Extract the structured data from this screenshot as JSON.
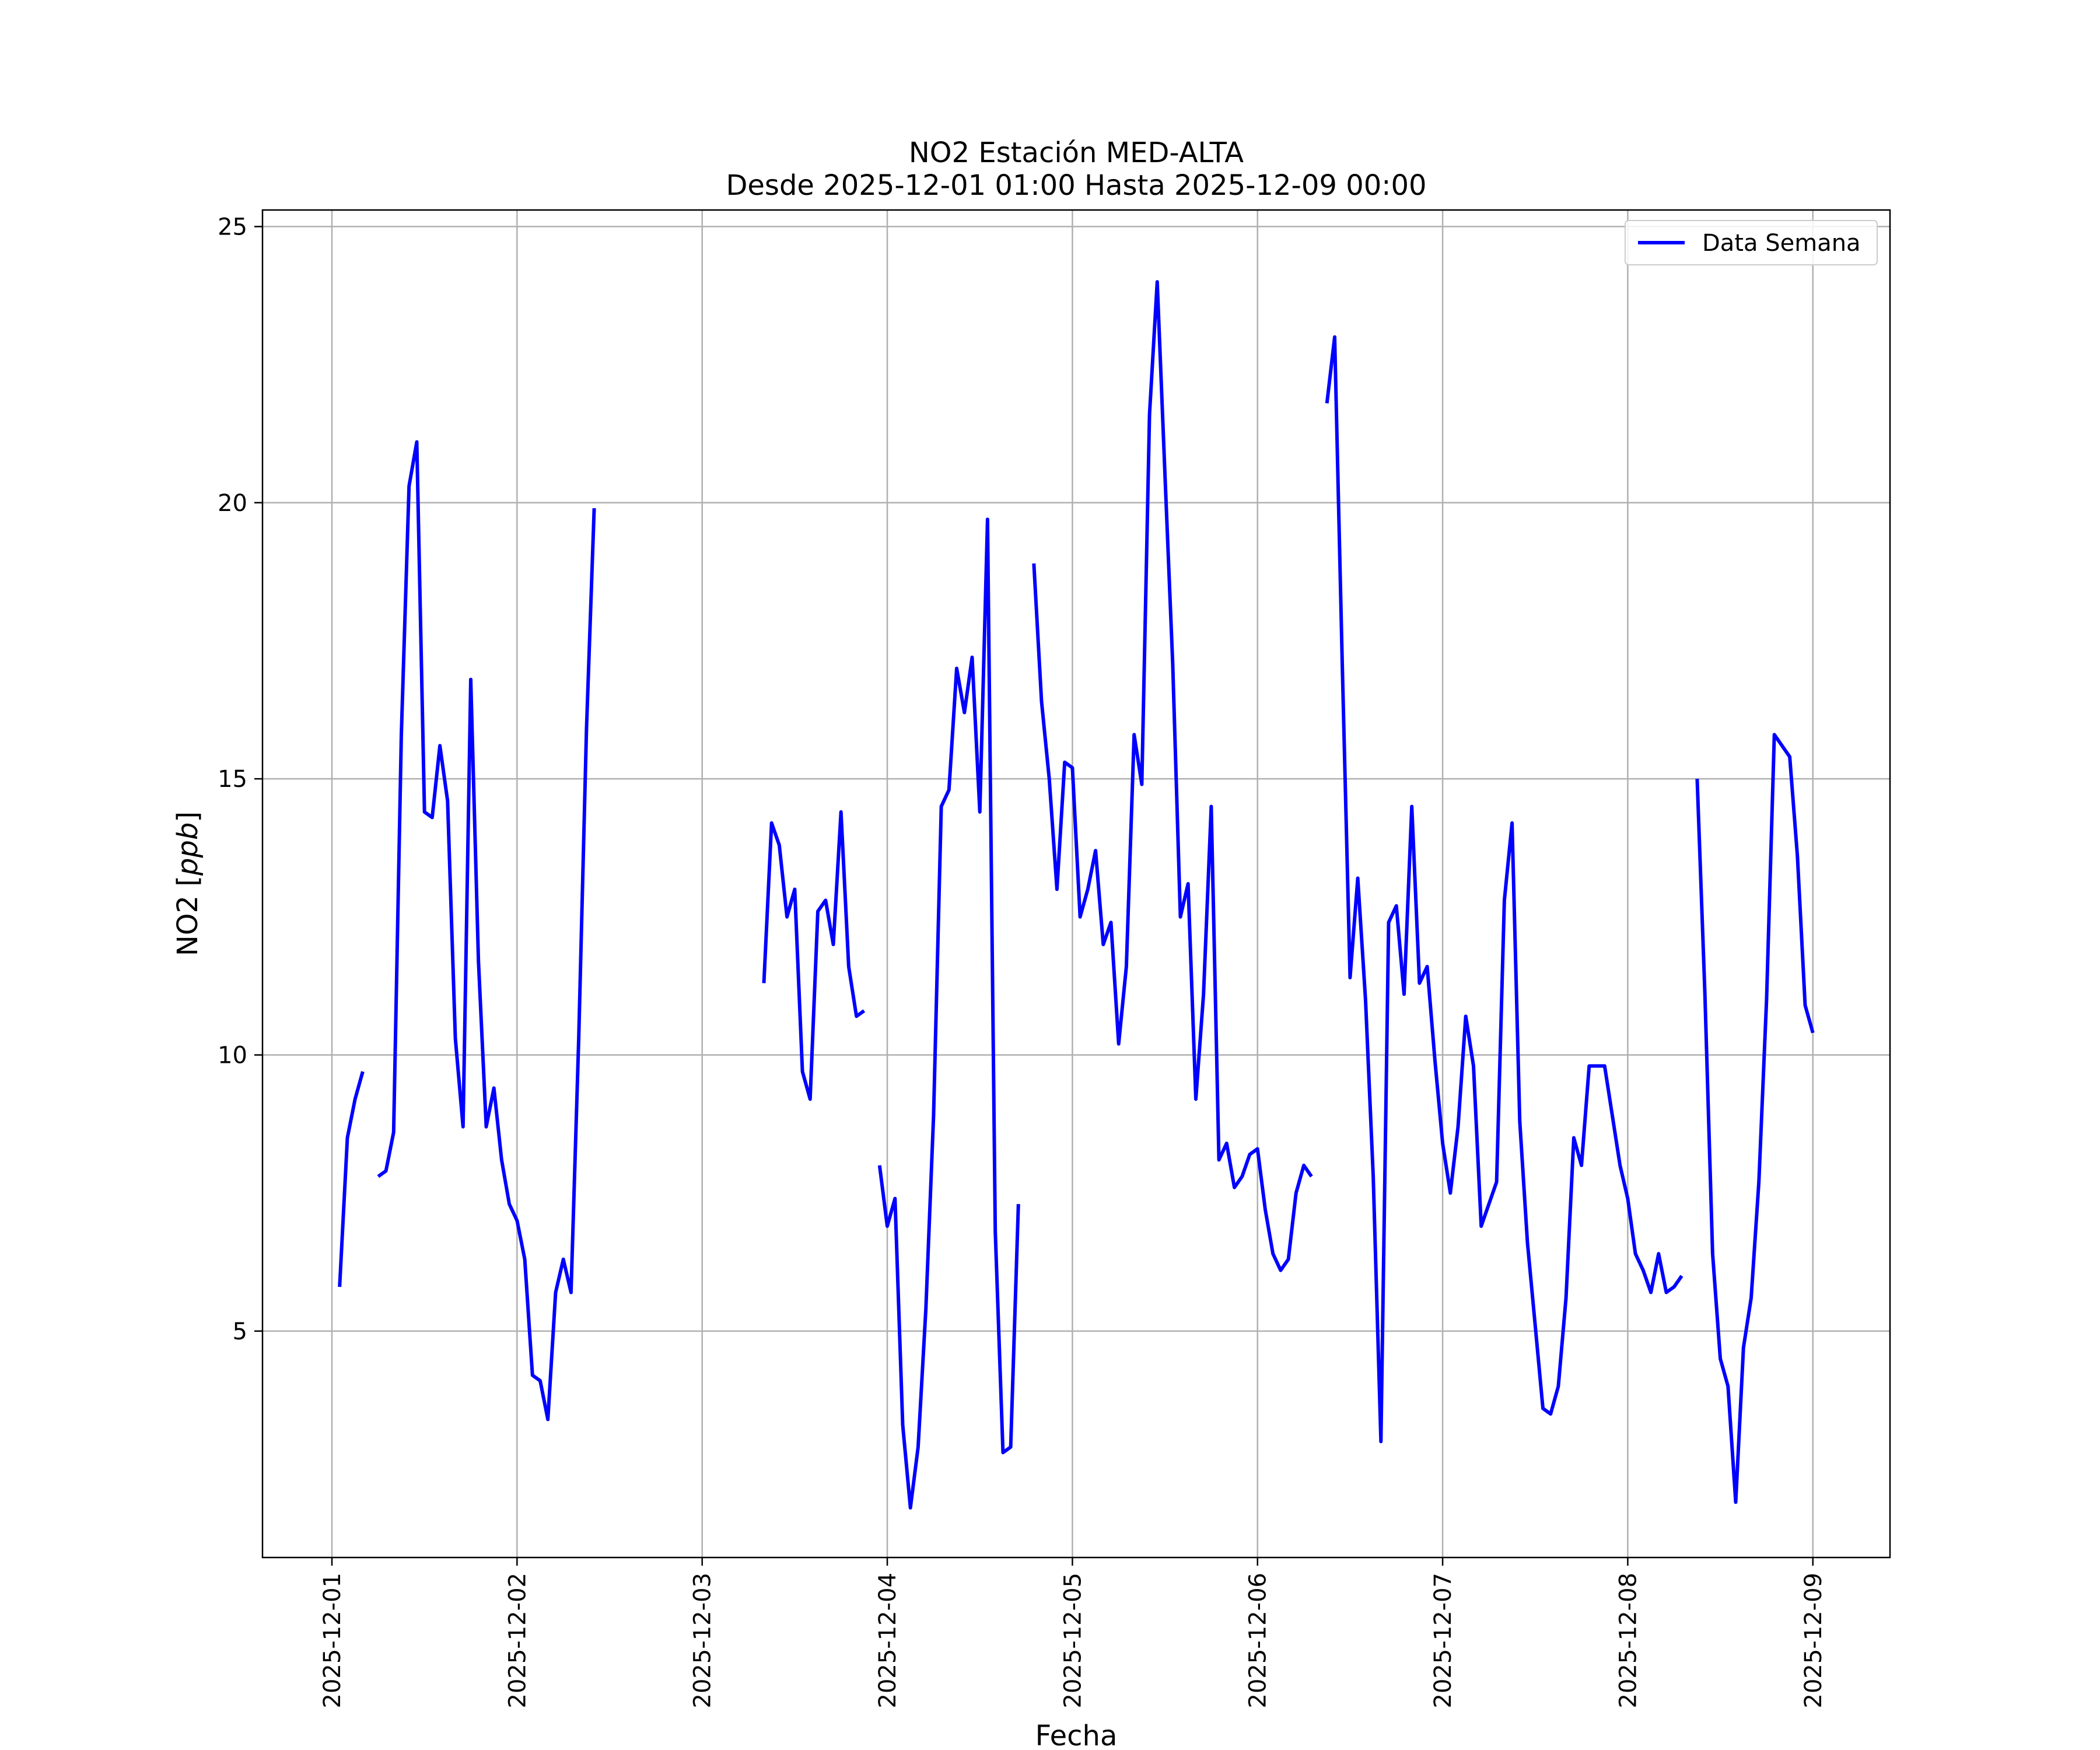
{
  "chart_data": {
    "type": "line",
    "title": "NO2 Estación MED-ALTA",
    "subtitle": "Desde 2025-12-01 01:00 Hasta 2025-12-09 00:00",
    "xlabel": "Fecha",
    "ylabel_prefix": "NO2 [",
    "ylabel_unit": "ppb",
    "ylabel_suffix": "]",
    "xlim": [
      "2025-11-30 15:00",
      "2025-12-09 10:00"
    ],
    "ylim": [
      0.9,
      25.3
    ],
    "x_ticks": [
      "2025-12-01",
      "2025-12-02",
      "2025-12-03",
      "2025-12-04",
      "2025-12-05",
      "2025-12-06",
      "2025-12-07",
      "2025-12-08",
      "2025-12-09"
    ],
    "y_ticks": [
      5,
      10,
      15,
      20,
      25
    ],
    "grid": true,
    "legend": "top-right",
    "series": [
      {
        "name": "Data Semana",
        "color": "#0000ff",
        "segments": [
          [
            [
              "2025-12-01 01:00",
              5.8
            ],
            [
              "2025-12-01 02:00",
              8.5
            ],
            [
              "2025-12-01 03:00",
              9.2
            ],
            [
              "2025-12-01 04:00",
              9.7
            ]
          ],
          [
            [
              "2025-12-01 06:00",
              7.8
            ],
            [
              "2025-12-01 07:00",
              7.9
            ],
            [
              "2025-12-01 08:00",
              8.6
            ],
            [
              "2025-12-01 09:00",
              15.8
            ],
            [
              "2025-12-01 10:00",
              20.3
            ],
            [
              "2025-12-01 11:00",
              21.1
            ],
            [
              "2025-12-01 12:00",
              14.4
            ],
            [
              "2025-12-01 13:00",
              14.3
            ],
            [
              "2025-12-01 14:00",
              15.6
            ],
            [
              "2025-12-01 15:00",
              14.6
            ],
            [
              "2025-12-01 16:00",
              10.3
            ],
            [
              "2025-12-01 17:00",
              8.7
            ],
            [
              "2025-12-01 18:00",
              16.8
            ],
            [
              "2025-12-01 19:00",
              11.7
            ],
            [
              "2025-12-01 20:00",
              8.7
            ],
            [
              "2025-12-01 21:00",
              9.4
            ],
            [
              "2025-12-01 22:00",
              8.1
            ],
            [
              "2025-12-01 23:00",
              7.3
            ],
            [
              "2025-12-02 00:00",
              7.0
            ],
            [
              "2025-12-02 01:00",
              6.3
            ],
            [
              "2025-12-02 02:00",
              4.2
            ],
            [
              "2025-12-02 03:00",
              4.1
            ],
            [
              "2025-12-02 04:00",
              3.4
            ],
            [
              "2025-12-02 05:00",
              5.7
            ],
            [
              "2025-12-02 06:00",
              6.3
            ],
            [
              "2025-12-02 07:00",
              5.7
            ],
            [
              "2025-12-02 08:00",
              10.3
            ],
            [
              "2025-12-02 09:00",
              15.9
            ],
            [
              "2025-12-02 10:00",
              19.9
            ]
          ],
          [
            [
              "2025-12-03 08:00",
              11.3
            ],
            [
              "2025-12-03 09:00",
              14.2
            ],
            [
              "2025-12-03 10:00",
              13.8
            ],
            [
              "2025-12-03 11:00",
              12.5
            ],
            [
              "2025-12-03 12:00",
              13.0
            ],
            [
              "2025-12-03 13:00",
              9.7
            ],
            [
              "2025-12-03 14:00",
              9.2
            ],
            [
              "2025-12-03 15:00",
              12.6
            ],
            [
              "2025-12-03 16:00",
              12.8
            ],
            [
              "2025-12-03 17:00",
              12.0
            ],
            [
              "2025-12-03 18:00",
              14.4
            ],
            [
              "2025-12-03 19:00",
              11.6
            ],
            [
              "2025-12-03 20:00",
              10.7
            ],
            [
              "2025-12-03 21:00",
              10.8
            ]
          ],
          [
            [
              "2025-12-03 23:00",
              8.0
            ],
            [
              "2025-12-04 00:00",
              6.9
            ],
            [
              "2025-12-04 01:00",
              7.4
            ],
            [
              "2025-12-04 02:00",
              3.3
            ],
            [
              "2025-12-04 03:00",
              1.8
            ],
            [
              "2025-12-04 04:00",
              2.9
            ],
            [
              "2025-12-04 05:00",
              5.4
            ],
            [
              "2025-12-04 06:00",
              8.9
            ],
            [
              "2025-12-04 07:00",
              14.5
            ],
            [
              "2025-12-04 08:00",
              14.8
            ],
            [
              "2025-12-04 09:00",
              17.0
            ],
            [
              "2025-12-04 10:00",
              16.2
            ],
            [
              "2025-12-04 11:00",
              17.2
            ],
            [
              "2025-12-04 12:00",
              14.4
            ],
            [
              "2025-12-04 13:00",
              19.7
            ],
            [
              "2025-12-04 14:00",
              6.8
            ],
            [
              "2025-12-04 15:00",
              2.8
            ],
            [
              "2025-12-04 16:00",
              2.9
            ],
            [
              "2025-12-04 17:00",
              7.3
            ]
          ],
          [
            [
              "2025-12-04 19:00",
              18.9
            ],
            [
              "2025-12-04 20:00",
              16.4
            ],
            [
              "2025-12-04 21:00",
              15.0
            ],
            [
              "2025-12-04 22:00",
              13.0
            ],
            [
              "2025-12-04 23:00",
              15.3
            ],
            [
              "2025-12-05 00:00",
              15.2
            ],
            [
              "2025-12-05 01:00",
              12.5
            ],
            [
              "2025-12-05 02:00",
              13.0
            ],
            [
              "2025-12-05 03:00",
              13.7
            ],
            [
              "2025-12-05 04:00",
              12.0
            ],
            [
              "2025-12-05 05:00",
              12.4
            ],
            [
              "2025-12-05 06:00",
              10.2
            ],
            [
              "2025-12-05 07:00",
              11.6
            ],
            [
              "2025-12-05 08:00",
              15.8
            ],
            [
              "2025-12-05 09:00",
              14.9
            ],
            [
              "2025-12-05 10:00",
              21.6
            ],
            [
              "2025-12-05 11:00",
              24.0
            ],
            [
              "2025-12-05 12:00",
              20.5
            ],
            [
              "2025-12-05 13:00",
              17.1
            ],
            [
              "2025-12-05 14:00",
              12.5
            ],
            [
              "2025-12-05 15:00",
              13.1
            ],
            [
              "2025-12-05 16:00",
              9.2
            ],
            [
              "2025-12-05 17:00",
              11.1
            ],
            [
              "2025-12-05 18:00",
              14.5
            ],
            [
              "2025-12-05 19:00",
              8.1
            ],
            [
              "2025-12-05 20:00",
              8.4
            ],
            [
              "2025-12-05 21:00",
              7.6
            ],
            [
              "2025-12-05 22:00",
              7.8
            ],
            [
              "2025-12-05 23:00",
              8.2
            ],
            [
              "2025-12-06 00:00",
              8.3
            ],
            [
              "2025-12-06 01:00",
              7.2
            ],
            [
              "2025-12-06 02:00",
              6.4
            ],
            [
              "2025-12-06 03:00",
              6.1
            ],
            [
              "2025-12-06 04:00",
              6.3
            ],
            [
              "2025-12-06 05:00",
              7.5
            ],
            [
              "2025-12-06 06:00",
              8.0
            ],
            [
              "2025-12-06 07:00",
              7.8
            ]
          ],
          [
            [
              "2025-12-06 09:00",
              21.8
            ],
            [
              "2025-12-06 10:00",
              23.0
            ],
            [
              "2025-12-06 11:00",
              17.0
            ],
            [
              "2025-12-06 12:00",
              11.4
            ],
            [
              "2025-12-06 13:00",
              13.2
            ],
            [
              "2025-12-06 14:00",
              11.0
            ],
            [
              "2025-12-06 15:00",
              7.8
            ],
            [
              "2025-12-06 16:00",
              3.0
            ],
            [
              "2025-12-06 17:00",
              12.4
            ],
            [
              "2025-12-06 18:00",
              12.7
            ],
            [
              "2025-12-06 19:00",
              11.1
            ],
            [
              "2025-12-06 20:00",
              14.5
            ],
            [
              "2025-12-06 21:00",
              11.3
            ],
            [
              "2025-12-06 22:00",
              11.6
            ],
            [
              "2025-12-06 23:00",
              9.9
            ],
            [
              "2025-12-07 00:00",
              8.4
            ],
            [
              "2025-12-07 01:00",
              7.5
            ],
            [
              "2025-12-07 02:00",
              8.7
            ],
            [
              "2025-12-07 03:00",
              10.7
            ],
            [
              "2025-12-07 04:00",
              9.8
            ],
            [
              "2025-12-07 05:00",
              6.9
            ],
            [
              "2025-12-07 06:00",
              7.3
            ],
            [
              "2025-12-07 07:00",
              7.7
            ],
            [
              "2025-12-07 08:00",
              12.8
            ],
            [
              "2025-12-07 09:00",
              14.2
            ],
            [
              "2025-12-07 10:00",
              8.8
            ],
            [
              "2025-12-07 11:00",
              6.6
            ],
            [
              "2025-12-07 12:00",
              5.1
            ],
            [
              "2025-12-07 13:00",
              3.6
            ],
            [
              "2025-12-07 14:00",
              3.5
            ],
            [
              "2025-12-07 15:00",
              4.0
            ],
            [
              "2025-12-07 16:00",
              5.6
            ],
            [
              "2025-12-07 17:00",
              8.5
            ],
            [
              "2025-12-07 18:00",
              8.0
            ],
            [
              "2025-12-07 19:00",
              9.8
            ],
            [
              "2025-12-07 20:00",
              9.8
            ],
            [
              "2025-12-07 21:00",
              9.8
            ],
            [
              "2025-12-07 22:00",
              8.9
            ],
            [
              "2025-12-07 23:00",
              8.0
            ],
            [
              "2025-12-08 00:00",
              7.4
            ],
            [
              "2025-12-08 01:00",
              6.4
            ],
            [
              "2025-12-08 02:00",
              6.1
            ],
            [
              "2025-12-08 03:00",
              5.7
            ],
            [
              "2025-12-08 04:00",
              6.4
            ],
            [
              "2025-12-08 05:00",
              5.7
            ],
            [
              "2025-12-08 06:00",
              5.8
            ],
            [
              "2025-12-08 07:00",
              6.0
            ]
          ],
          [
            [
              "2025-12-08 09:00",
              15.0
            ],
            [
              "2025-12-08 10:00",
              11.1
            ],
            [
              "2025-12-08 11:00",
              6.4
            ],
            [
              "2025-12-08 12:00",
              4.5
            ],
            [
              "2025-12-08 13:00",
              4.0
            ],
            [
              "2025-12-08 14:00",
              1.9
            ],
            [
              "2025-12-08 15:00",
              4.7
            ],
            [
              "2025-12-08 16:00",
              5.6
            ],
            [
              "2025-12-08 17:00",
              7.7
            ],
            [
              "2025-12-08 18:00",
              11.0
            ],
            [
              "2025-12-08 19:00",
              15.8
            ],
            [
              "2025-12-08 20:00",
              15.6
            ],
            [
              "2025-12-08 21:00",
              15.4
            ],
            [
              "2025-12-08 22:00",
              13.6
            ],
            [
              "2025-12-08 23:00",
              10.9
            ],
            [
              "2025-12-09 00:00",
              10.4
            ]
          ]
        ]
      }
    ]
  }
}
